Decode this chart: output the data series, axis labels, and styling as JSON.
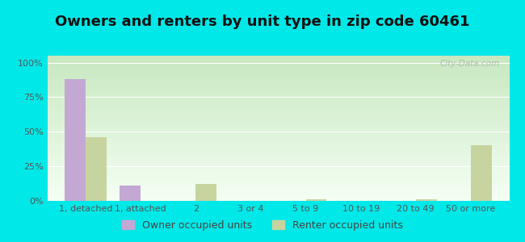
{
  "title": "Owners and renters by unit type in zip code 60461",
  "categories": [
    "1, detached",
    "1, attached",
    "2",
    "3 or 4",
    "5 to 9",
    "10 to 19",
    "20 to 49",
    "50 or more"
  ],
  "owner_values": [
    88,
    11,
    0,
    0,
    0,
    0,
    0,
    0
  ],
  "renter_values": [
    46,
    0,
    12,
    0,
    1,
    0,
    1,
    40
  ],
  "owner_color": "#c4a8d4",
  "renter_color": "#c8d4a0",
  "background_outer": "#00e8e8",
  "yticks": [
    0,
    25,
    50,
    75,
    100
  ],
  "ytick_labels": [
    "0%",
    "25%",
    "50%",
    "75%",
    "100%"
  ],
  "ylim": [
    0,
    105
  ],
  "bar_width": 0.38,
  "legend_owner": "Owner occupied units",
  "legend_renter": "Renter occupied units",
  "title_fontsize": 13,
  "tick_fontsize": 8,
  "legend_fontsize": 9,
  "watermark": "City-Data.com",
  "grid_color": "#dddddd",
  "gradient_top": "#c8e8c0",
  "gradient_bottom": "#f4fff4"
}
